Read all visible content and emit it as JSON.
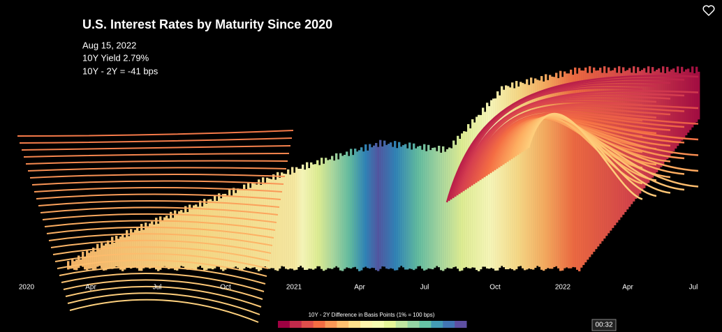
{
  "header": {
    "title": "U.S. Interest Rates by Maturity Since 2020",
    "date": "Aug 15, 2022",
    "yield": "10Y Yield 2.79%",
    "spread": "10Y - 2Y = -41 bps"
  },
  "x_axis": {
    "labels": [
      "2020",
      "Apr",
      "Jul",
      "Oct",
      "2021",
      "Apr",
      "Jul",
      "Oct",
      "2022",
      "Apr",
      "Jul"
    ]
  },
  "legend": {
    "label": "10Y - 2Y Difference in Basis Points (1% = 100 bps)"
  },
  "player": {
    "time": "00:32"
  }
}
